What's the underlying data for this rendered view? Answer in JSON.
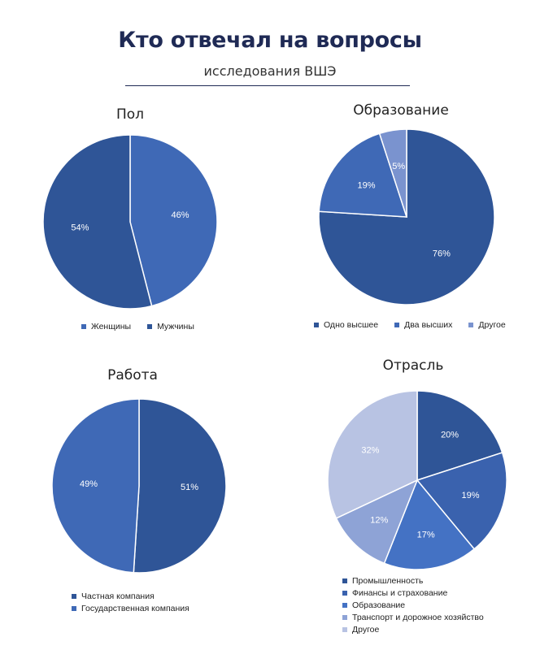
{
  "header": {
    "title": "Кто отвечал на вопросы",
    "subtitle": "исследования ВШЭ"
  },
  "chart_data": [
    {
      "type": "pie",
      "title": "Пол",
      "categories": [
        "Женщины",
        "Мужчины"
      ],
      "values": [
        46,
        54
      ],
      "value_labels": [
        "46%",
        "54%"
      ],
      "colors": [
        "#3f69b6",
        "#2f5597"
      ],
      "legend_placement": "bottom"
    },
    {
      "type": "pie",
      "title": "Образование",
      "categories": [
        "Одно высшее",
        "Два высших",
        "Другое"
      ],
      "values": [
        76,
        19,
        5
      ],
      "value_labels": [
        "76%",
        "19%",
        "5%"
      ],
      "colors": [
        "#2f5597",
        "#3f69b6",
        "#7a93cf"
      ],
      "legend_placement": "bottom"
    },
    {
      "type": "pie",
      "title": "Работа",
      "categories": [
        "Частная компания",
        "Государственная компания"
      ],
      "values": [
        51,
        49
      ],
      "value_labels": [
        "51%",
        "49%"
      ],
      "colors": [
        "#2f5597",
        "#3f69b6"
      ],
      "legend_placement": "bottom"
    },
    {
      "type": "pie",
      "title": "Отрасль",
      "categories": [
        "Промышленность",
        "Финансы и страхование",
        "Образование",
        "Транспорт и дорожное хозяйство",
        "Другое"
      ],
      "values": [
        20,
        19,
        17,
        12,
        32
      ],
      "value_labels": [
        "20%",
        "19%",
        "17%",
        "12%",
        "32%"
      ],
      "colors": [
        "#2f5597",
        "#3a62ae",
        "#4472c4",
        "#8ea3d6",
        "#b8c3e3"
      ],
      "legend_placement": "bottom"
    }
  ]
}
